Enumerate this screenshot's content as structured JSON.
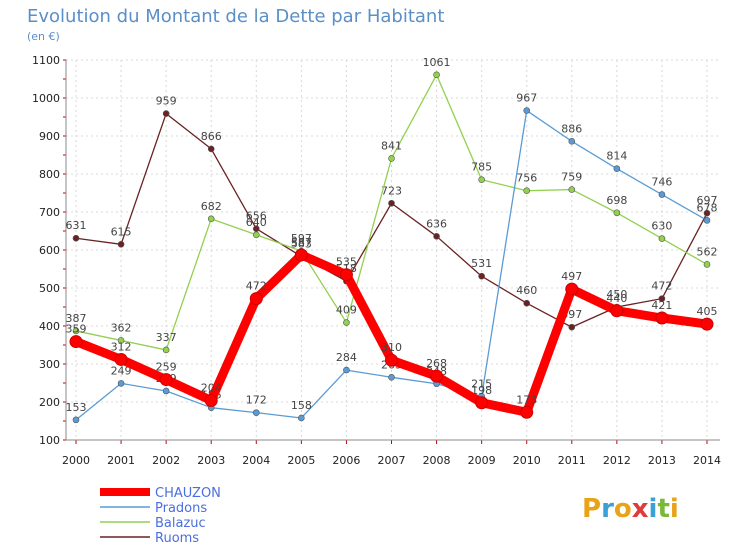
{
  "chart_data": {
    "type": "line",
    "title": "Evolution du Montant de la Dette par Habitant",
    "subtitle": "(en €)",
    "x": [
      "2000",
      "2001",
      "2002",
      "2003",
      "2004",
      "2005",
      "2006",
      "2007",
      "2008",
      "2009",
      "2010",
      "2011",
      "2012",
      "2013",
      "2014"
    ],
    "ylim": [
      100,
      1100
    ],
    "yticks": [
      100,
      200,
      300,
      400,
      500,
      600,
      700,
      800,
      900,
      1000,
      1100
    ],
    "grid": true,
    "legend_position": "bottom-left",
    "series": [
      {
        "name": "CHAUZON",
        "color": "#ff0000",
        "values": [
          359,
          312,
          259,
          204,
          472,
          587,
          535,
          310,
          268,
          198,
          173,
          497,
          440,
          421,
          405
        ]
      },
      {
        "name": "Pradons",
        "color": "#5b9bd5",
        "values": [
          153,
          249,
          229,
          185,
          172,
          158,
          284,
          265,
          248,
          215,
          967,
          886,
          814,
          746,
          678
        ]
      },
      {
        "name": "Balazuc",
        "color": "#92d050",
        "values": [
          387,
          362,
          337,
          682,
          640,
          597,
          409,
          841,
          1061,
          785,
          756,
          759,
          698,
          630,
          562
        ]
      },
      {
        "name": "Ruoms",
        "color": "#6b2222",
        "values": [
          631,
          615,
          959,
          866,
          656,
          583,
          518,
          723,
          636,
          531,
          460,
          397,
          450,
          472,
          697
        ]
      }
    ]
  },
  "logo": {
    "text": "Proxiti"
  }
}
